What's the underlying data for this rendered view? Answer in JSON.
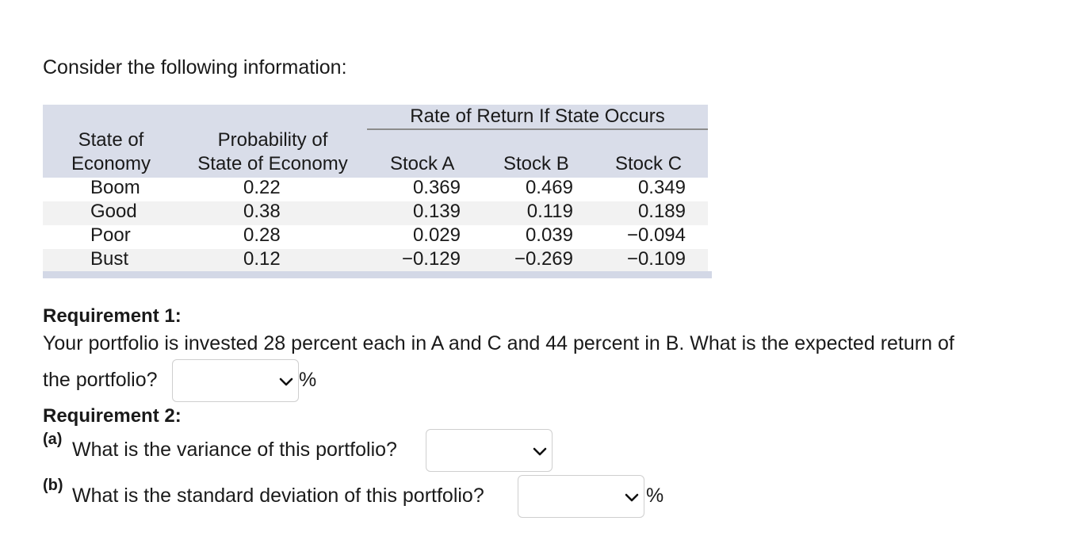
{
  "intro": "Consider the following information:",
  "table": {
    "group_header": "Rate of Return If State Occurs",
    "col_state": [
      "State of",
      "Economy"
    ],
    "col_prob": [
      "Probability of",
      "State of Economy"
    ],
    "col_a": "Stock A",
    "col_b": "Stock B",
    "col_c": "Stock C",
    "rows": [
      {
        "state": "Boom",
        "prob": "0.22",
        "a": "0.369",
        "b": "0.469",
        "c": "0.349"
      },
      {
        "state": "Good",
        "prob": "0.38",
        "a": "0.139",
        "b": "0.119",
        "c": "0.189"
      },
      {
        "state": "Poor",
        "prob": "0.28",
        "a": "0.029",
        "b": "0.039",
        "c": "−0.094"
      },
      {
        "state": "Bust",
        "prob": "0.12",
        "a": "−0.129",
        "b": "−0.269",
        "c": "−0.109"
      }
    ]
  },
  "req1": {
    "heading": "Requirement 1:",
    "line1": "Your portfolio is invested 28 percent each in A and C and 44 percent in B. What is the expected return of",
    "line2": "the portfolio?",
    "unit": "%",
    "answer_value": ""
  },
  "req2": {
    "heading": "Requirement 2:",
    "a_label": "(a)",
    "a_text": "What is the variance of this portfolio?",
    "a_value": "",
    "b_label": "(b)",
    "b_text": "What is the standard deviation of this portfolio?",
    "b_value": "",
    "b_unit": "%"
  },
  "colors": {
    "header_band": "#d9dde9",
    "stripe": "#f2f2f2",
    "bottom_bar": "#d3d8e6"
  },
  "icons": {
    "dropdown": "chevron-down-icon"
  }
}
